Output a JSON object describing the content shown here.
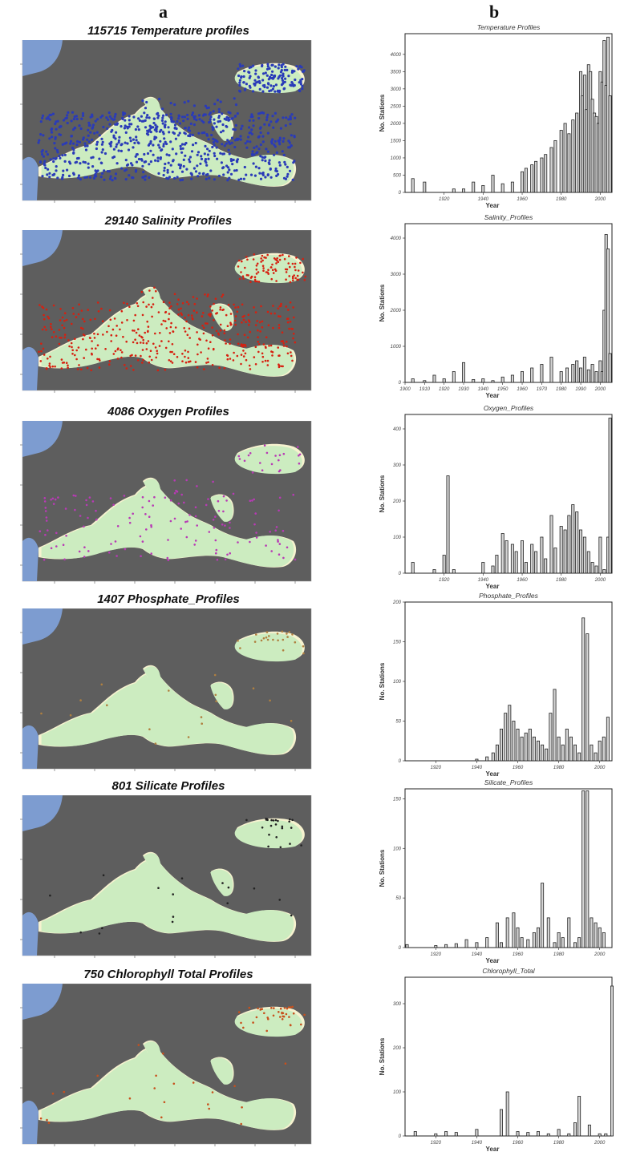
{
  "figure": {
    "label_a": "a",
    "label_b": "b"
  },
  "colors": {
    "land": "#5e5e5e",
    "atlantic": "#7d9cd0",
    "sea_fill": "#ccecc0",
    "shallow": "#f6f2cf",
    "bar": "#d4d4d4"
  },
  "maps": [
    {
      "title": "115715 Temperature profiles",
      "dot_color": "#2a3bb8"
    },
    {
      "title": "29140 Salinity Profiles",
      "dot_color": "#d62010"
    },
    {
      "title": "4086 Oxygen Profiles",
      "dot_color": "#b83ab5"
    },
    {
      "title": "1407 Phosphate_Profiles",
      "dot_color": "#b08040"
    },
    {
      "title": "801 Silicate Profiles",
      "dot_color": "#222222"
    },
    {
      "title": "750 Chlorophyll Total Profiles",
      "dot_color": "#c8501c"
    }
  ],
  "chart_data": [
    {
      "type": "bar",
      "title": "Temperature Profiles",
      "xlabel": "Year",
      "ylabel": "No. Stations",
      "ylim": [
        0,
        4600
      ],
      "yticks": [
        0,
        500,
        1000,
        1500,
        2000,
        2500,
        3000,
        3500,
        4000
      ],
      "xlim": [
        1900,
        2006
      ],
      "xticks": [
        1920,
        1940,
        1960,
        1980,
        2000
      ],
      "x": [
        1904,
        1910,
        1925,
        1930,
        1935,
        1940,
        1945,
        1950,
        1955,
        1960,
        1962,
        1965,
        1967,
        1970,
        1972,
        1975,
        1977,
        1980,
        1982,
        1984,
        1986,
        1988,
        1990,
        1991,
        1992,
        1993,
        1994,
        1995,
        1996,
        1997,
        1998,
        1999,
        2000,
        2001,
        2002,
        2003,
        2004,
        2005
      ],
      "values": [
        400,
        300,
        100,
        100,
        300,
        200,
        500,
        250,
        300,
        600,
        700,
        800,
        900,
        1000,
        1100,
        1300,
        1500,
        1800,
        2000,
        1700,
        2100,
        2300,
        3500,
        2800,
        3400,
        2400,
        3700,
        3500,
        2700,
        2300,
        2200,
        2000,
        3500,
        3200,
        4400,
        3100,
        4500,
        2800
      ]
    },
    {
      "type": "bar",
      "title": "Salinity_Profiles",
      "xlabel": "Year",
      "ylabel": "No. Stations",
      "ylim": [
        0,
        4400
      ],
      "yticks": [
        0,
        1000,
        2000,
        3000,
        4000
      ],
      "xlim": [
        1900,
        2006
      ],
      "xticks": [
        1900,
        1910,
        1920,
        1930,
        1940,
        1950,
        1960,
        1970,
        1980,
        1990,
        2000
      ],
      "x": [
        1904,
        1910,
        1915,
        1920,
        1925,
        1930,
        1935,
        1940,
        1945,
        1950,
        1955,
        1960,
        1965,
        1970,
        1975,
        1980,
        1983,
        1986,
        1988,
        1990,
        1992,
        1994,
        1996,
        1998,
        2000,
        2001,
        2002,
        2003,
        2004,
        2005
      ],
      "values": [
        100,
        50,
        200,
        100,
        300,
        550,
        80,
        100,
        50,
        150,
        200,
        300,
        400,
        500,
        700,
        300,
        400,
        500,
        600,
        400,
        700,
        350,
        500,
        300,
        600,
        300,
        2000,
        4100,
        3700,
        800
      ]
    },
    {
      "type": "bar",
      "title": "Oxygen_Profiles",
      "xlabel": "Year",
      "ylabel": "No. Stations",
      "ylim": [
        0,
        440
      ],
      "yticks": [
        0,
        100,
        200,
        300,
        400
      ],
      "xlim": [
        1900,
        2006
      ],
      "xticks": [
        1920,
        1940,
        1960,
        1980,
        2000
      ],
      "x": [
        1904,
        1915,
        1920,
        1922,
        1925,
        1940,
        1945,
        1947,
        1950,
        1952,
        1955,
        1957,
        1960,
        1962,
        1965,
        1967,
        1970,
        1972,
        1975,
        1977,
        1980,
        1982,
        1984,
        1986,
        1988,
        1990,
        1992,
        1994,
        1996,
        1998,
        2000,
        2002,
        2004,
        2005
      ],
      "values": [
        30,
        10,
        50,
        270,
        10,
        30,
        20,
        50,
        110,
        90,
        80,
        60,
        90,
        30,
        80,
        60,
        100,
        40,
        160,
        70,
        130,
        120,
        160,
        190,
        170,
        120,
        100,
        60,
        30,
        20,
        100,
        10,
        100,
        430
      ]
    },
    {
      "type": "bar",
      "title": "Phosphate_Profiles",
      "xlabel": "Year",
      "ylabel": "No. Stations",
      "ylim": [
        0,
        200
      ],
      "yticks": [
        0,
        50,
        100,
        150,
        200
      ],
      "xlim": [
        1905,
        2006
      ],
      "xticks": [
        1920,
        1940,
        1960,
        1980,
        2000
      ],
      "x": [
        1940,
        1945,
        1948,
        1950,
        1952,
        1954,
        1956,
        1958,
        1960,
        1962,
        1964,
        1966,
        1968,
        1970,
        1972,
        1974,
        1976,
        1978,
        1980,
        1982,
        1984,
        1986,
        1988,
        1990,
        1992,
        1994,
        1996,
        1998,
        2000,
        2002,
        2004
      ],
      "values": [
        2,
        5,
        10,
        20,
        40,
        60,
        70,
        50,
        40,
        30,
        35,
        40,
        30,
        25,
        20,
        15,
        60,
        90,
        30,
        20,
        40,
        30,
        20,
        10,
        180,
        160,
        20,
        10,
        25,
        30,
        55
      ]
    },
    {
      "type": "bar",
      "title": "Silicate_Profiles",
      "xlabel": "Year",
      "ylabel": "No. Stations",
      "ylim": [
        0,
        160
      ],
      "yticks": [
        0,
        50,
        100,
        150
      ],
      "xlim": [
        1905,
        2006
      ],
      "xticks": [
        1920,
        1940,
        1960,
        1980,
        2000
      ],
      "x": [
        1906,
        1920,
        1925,
        1930,
        1935,
        1940,
        1945,
        1950,
        1952,
        1955,
        1958,
        1960,
        1962,
        1965,
        1968,
        1970,
        1972,
        1975,
        1978,
        1980,
        1982,
        1985,
        1988,
        1990,
        1992,
        1994,
        1996,
        1998,
        2000,
        2002
      ],
      "values": [
        3,
        2,
        3,
        4,
        8,
        5,
        10,
        25,
        5,
        30,
        35,
        20,
        10,
        8,
        15,
        20,
        65,
        30,
        5,
        15,
        10,
        30,
        5,
        10,
        158,
        158,
        30,
        25,
        20,
        15
      ]
    },
    {
      "type": "bar",
      "title": "Chlorophyll_Total",
      "xlabel": "Year",
      "ylabel": "No. Stations",
      "ylim": [
        0,
        360
      ],
      "yticks": [
        0,
        100,
        200,
        300
      ],
      "xlim": [
        1905,
        2006
      ],
      "xticks": [
        1920,
        1940,
        1960,
        1980,
        2000
      ],
      "x": [
        1910,
        1920,
        1925,
        1930,
        1940,
        1952,
        1955,
        1960,
        1965,
        1970,
        1975,
        1980,
        1985,
        1988,
        1990,
        1995,
        2000,
        2003,
        2006
      ],
      "values": [
        10,
        5,
        10,
        8,
        15,
        60,
        100,
        10,
        8,
        10,
        5,
        15,
        5,
        30,
        90,
        25,
        5,
        5,
        340
      ]
    }
  ]
}
